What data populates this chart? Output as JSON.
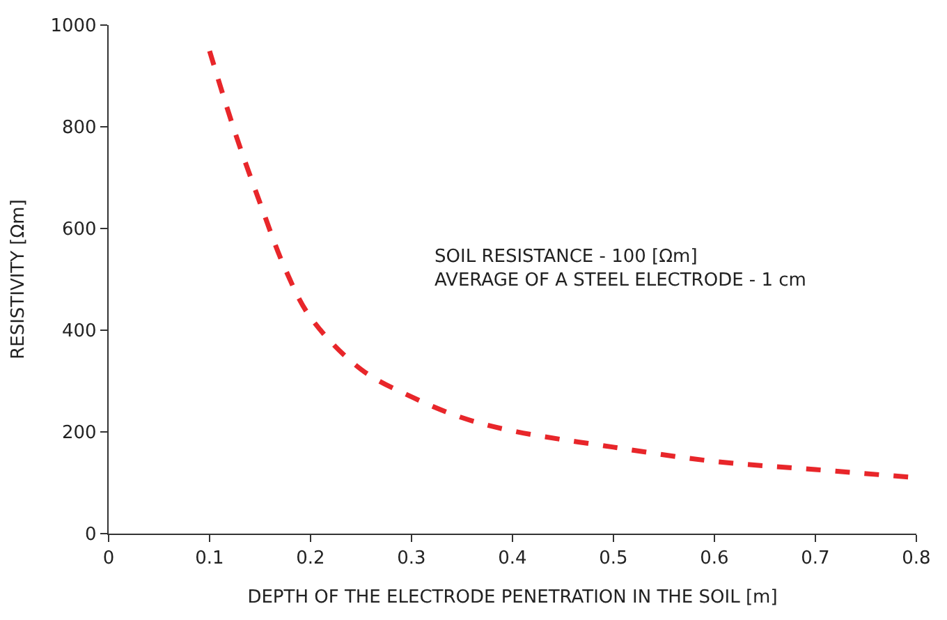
{
  "chart_data": {
    "type": "line",
    "xlabel": "DEPTH OF THE ELECTRODE PENETRATION IN THE SOIL [m]",
    "ylabel": "RESISTIVITY [Ωm]",
    "annotations": [
      "SOIL RESISTANCE - 100 [Ωm]\nAVERAGE OF A STEEL ELECTRODE - 1 cm"
    ],
    "x": [
      0.1,
      0.125,
      0.15,
      0.175,
      0.2,
      0.25,
      0.3,
      0.35,
      0.4,
      0.5,
      0.6,
      0.7,
      0.8
    ],
    "series": [
      {
        "color": "#e8262a",
        "values": [
          949,
          790,
          650,
          520,
          425,
          323,
          269,
          228,
          202,
          170,
          142,
          126,
          110
        ]
      }
    ],
    "xlim": [
      0,
      0.8
    ],
    "ylim": [
      0,
      1000
    ],
    "xticks": [
      0,
      0.1,
      0.2,
      0.3,
      0.4,
      0.5,
      0.6,
      0.7,
      0.8
    ],
    "yticks": [
      0,
      200,
      400,
      600,
      800,
      1000
    ],
    "marker": "none",
    "line_style": "dashed"
  }
}
